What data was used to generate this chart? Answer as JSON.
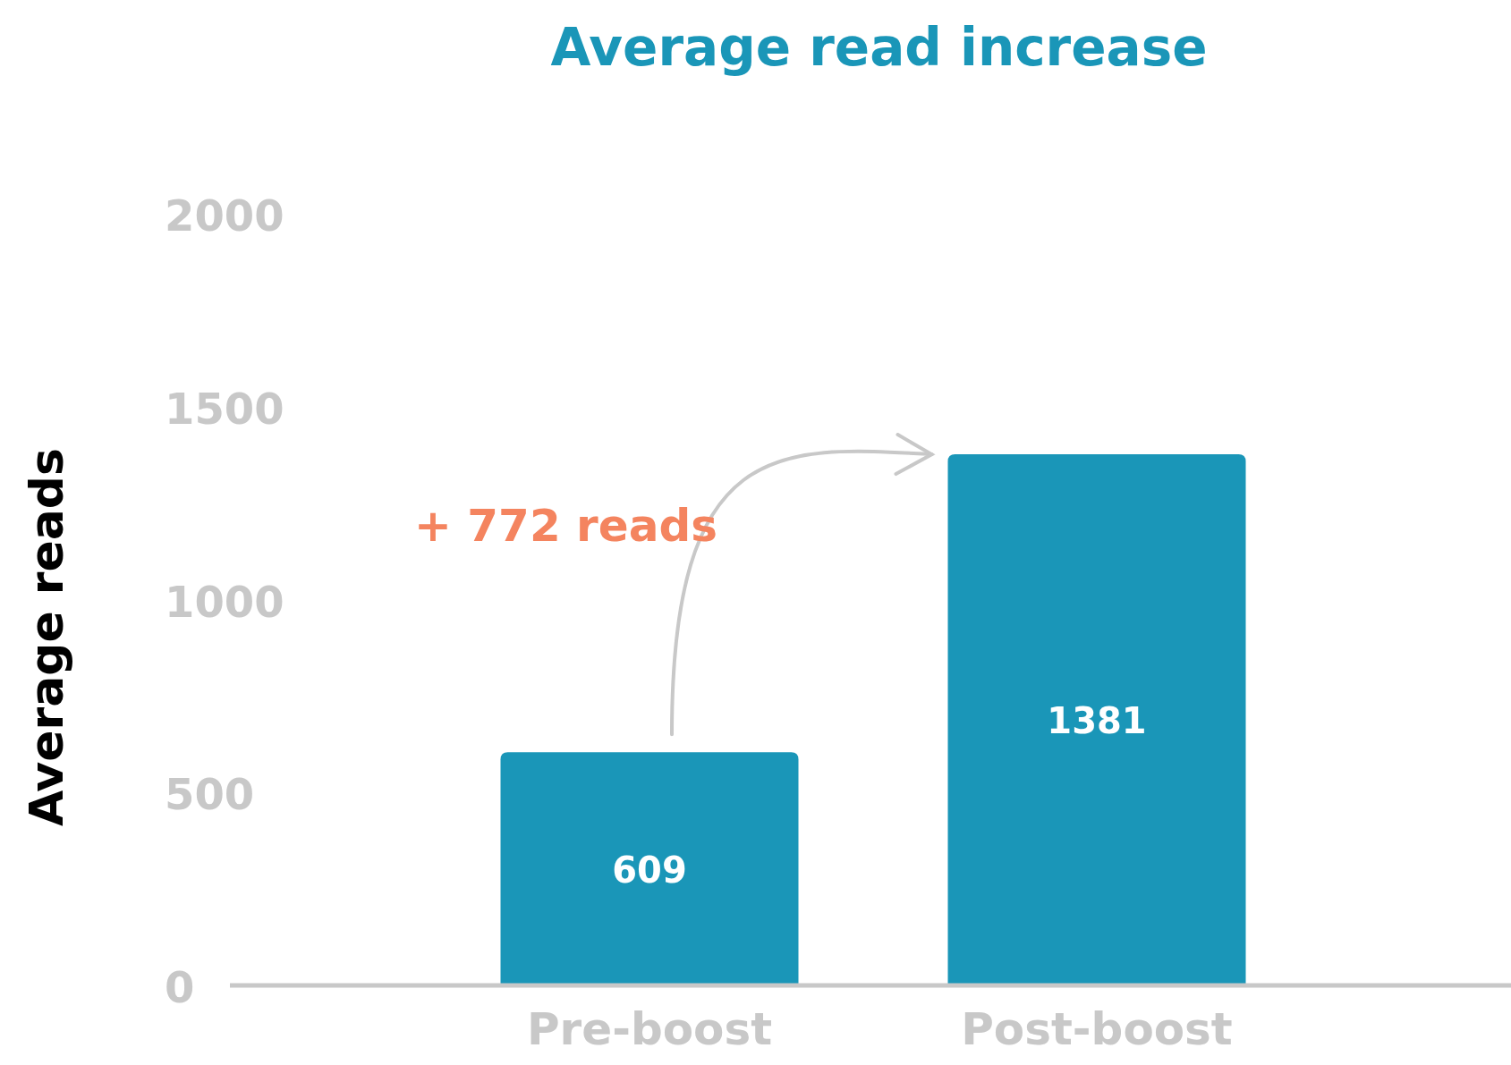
{
  "chart_data": {
    "type": "bar",
    "title": "Average read increase",
    "ylabel": "Average reads",
    "categories": [
      "Pre-boost",
      "Post-boost"
    ],
    "values": [
      609,
      1381
    ],
    "color": "#1a96b8",
    "ylim": [
      0,
      2000
    ],
    "yticks": [
      0,
      500,
      1000,
      1500,
      2000
    ],
    "grid": false,
    "data_labels": true,
    "annotations": [
      "+ 772 reads"
    ]
  }
}
